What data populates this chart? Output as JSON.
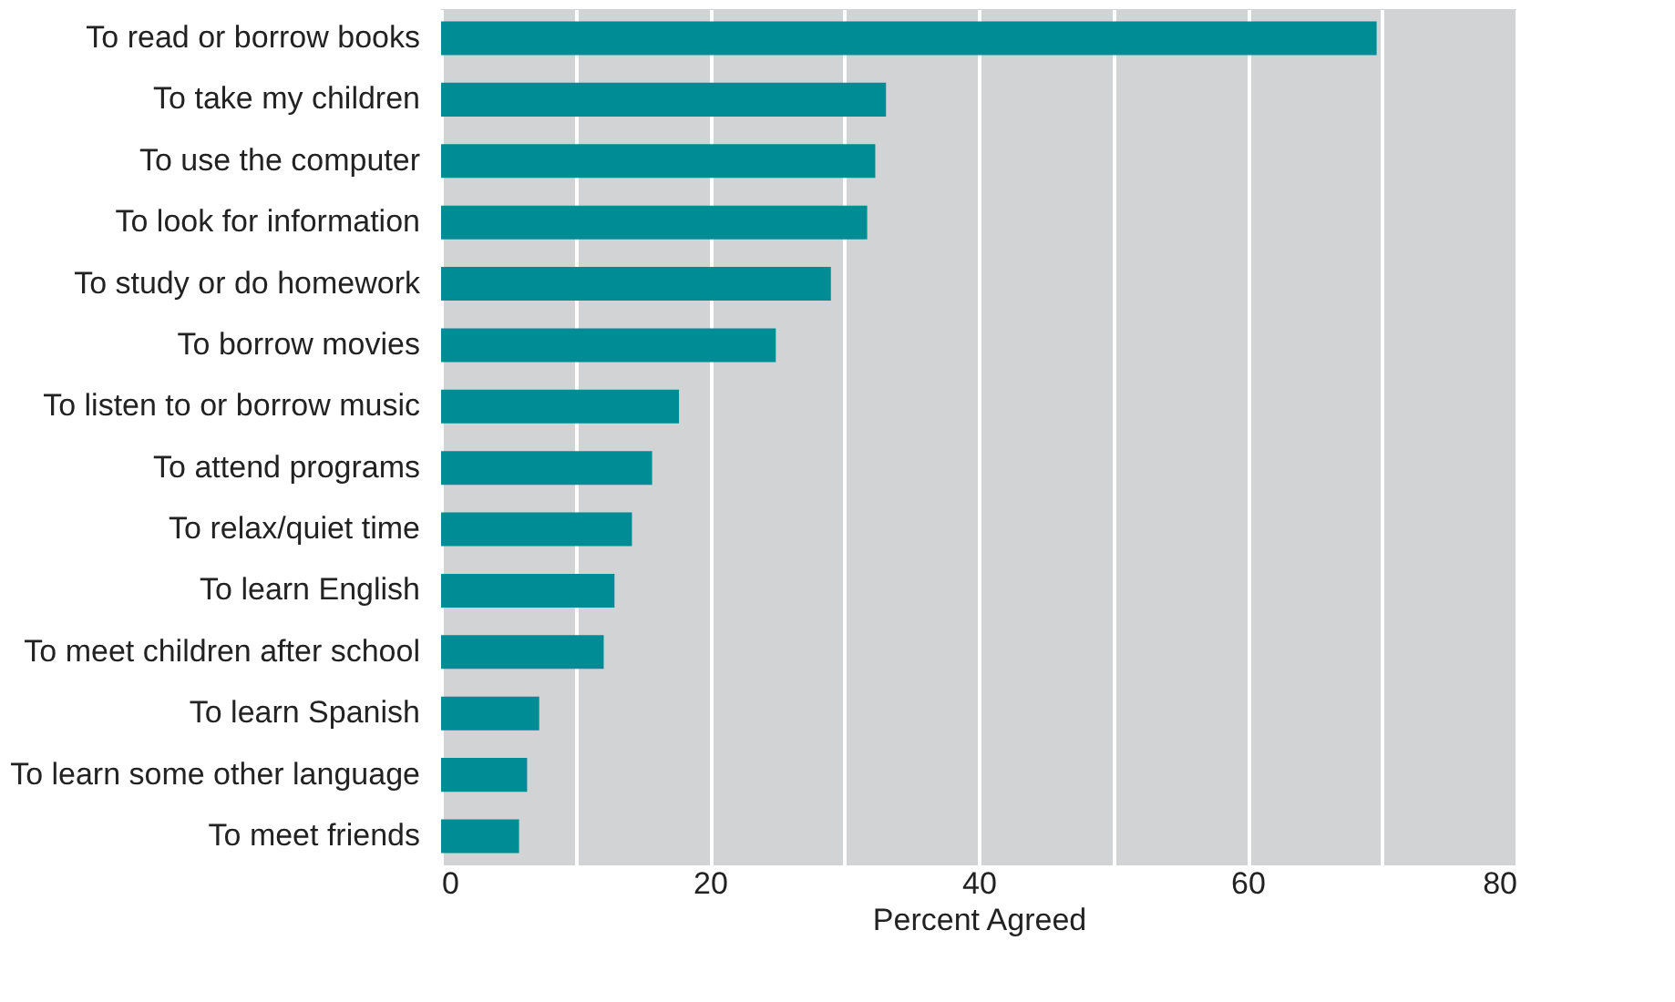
{
  "chart_data": {
    "type": "bar",
    "orientation": "horizontal",
    "xlabel": "Percent Agreed",
    "categories": [
      "To read or borrow books",
      "To take my children",
      "To use the computer",
      "To look for information",
      "To study or do homework",
      "To borrow movies",
      "To listen to or borrow music",
      "To attend programs",
      "To relax/quiet time",
      "To learn English",
      "To meet children after school",
      "To learn Spanish",
      "To learn some other language",
      "To meet friends"
    ],
    "values": [
      69.6,
      33.1,
      32.3,
      31.7,
      29.0,
      24.9,
      17.7,
      15.7,
      14.2,
      12.9,
      12.1,
      7.3,
      6.4,
      5.8
    ],
    "color": "#008c95",
    "xlim": [
      0,
      80
    ],
    "xticks": [
      0,
      {
        "value": 10,
        "label": null
      },
      20,
      {
        "value": 30,
        "label": null
      },
      40,
      {
        "value": 50,
        "label": null
      },
      60,
      {
        "value": 70,
        "label": null
      },
      80
    ],
    "grid": "x"
  }
}
